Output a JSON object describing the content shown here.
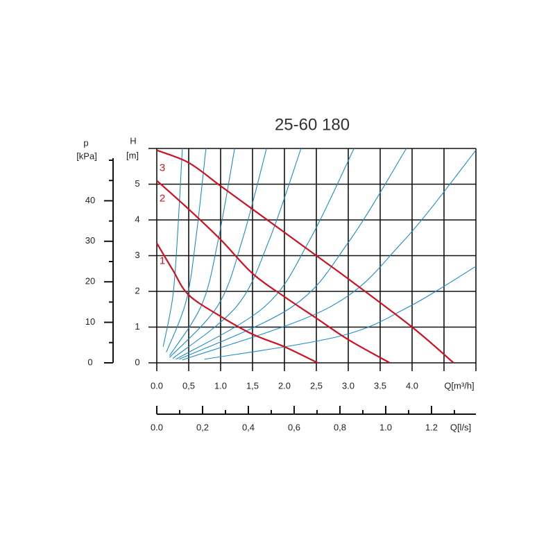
{
  "chart_data": {
    "type": "line",
    "title": "25-60 180",
    "x_label": "Q[m³/h]",
    "xlim": [
      0,
      5
    ],
    "xticks": [
      {
        "value": 0,
        "label": "0.0"
      },
      {
        "value": 0.5,
        "label": "0,5"
      },
      {
        "value": 1,
        "label": "1.0"
      },
      {
        "value": 1.5,
        "label": "1,5"
      },
      {
        "value": 2,
        "label": "2.0"
      },
      {
        "value": 2.5,
        "label": "2,5"
      },
      {
        "value": 3,
        "label": "3.0"
      },
      {
        "value": 3.5,
        "label": "3.5"
      },
      {
        "value": 4,
        "label": "4.0"
      }
    ],
    "xgrid": [
      0,
      0.5,
      1,
      1.5,
      2,
      2.5,
      3,
      3.5,
      4,
      4.5,
      5
    ],
    "y_label": "H",
    "y_unit": "[m]",
    "ylim": [
      0,
      6
    ],
    "yticks": [
      0,
      1,
      2,
      3,
      4,
      5
    ],
    "ygrid": [
      0,
      1,
      2,
      3,
      4,
      5,
      6
    ],
    "p_axis": {
      "label": "p",
      "unit": "[kPa]",
      "lim": [
        0,
        50
      ],
      "ticks": [
        0,
        10,
        20,
        30,
        40
      ],
      "minor_ticks": [
        5,
        15,
        25,
        35,
        45,
        50
      ]
    },
    "ls_axis": {
      "label": "Q[l/s]",
      "lim": [
        0,
        1.394
      ],
      "ticks": [
        {
          "value": 0,
          "label": "0.0"
        },
        {
          "value": 0.2,
          "label": "0,2"
        },
        {
          "value": 0.4,
          "label": "0,4"
        },
        {
          "value": 0.6,
          "label": "0,6"
        },
        {
          "value": 0.8,
          "label": "0,8"
        },
        {
          "value": 1,
          "label": "1.0"
        },
        {
          "value": 1.2,
          "label": "1.2"
        }
      ],
      "minor_ticks": [
        0.1,
        0.3,
        0.5,
        0.7,
        0.9,
        1.1,
        1.3
      ]
    },
    "series": [
      {
        "name": "1",
        "color": "#d0101e",
        "x": [
          0,
          0.25,
          0.5,
          1,
          1.5,
          2,
          2.52
        ],
        "values": [
          3.35,
          2.6,
          1.9,
          1.3,
          0.8,
          0.45,
          0
        ]
      },
      {
        "name": "2",
        "color": "#d0101e",
        "x": [
          0,
          0.5,
          1,
          1.5,
          2,
          2.5,
          3,
          3.65
        ],
        "values": [
          5.1,
          4.3,
          3.45,
          2.5,
          1.85,
          1.25,
          0.65,
          0
        ]
      },
      {
        "name": "3",
        "color": "#d0101e",
        "x": [
          0,
          0.5,
          1,
          1.5,
          2.5,
          3,
          4,
          4.65
        ],
        "values": [
          5.95,
          5.6,
          4.95,
          4.3,
          3,
          2.35,
          1,
          0
        ]
      }
    ],
    "system_curves": {
      "color": "#1a8ccc",
      "curves": [
        {
          "x": [
            0.1,
            0.25,
            0.325,
            0.4
          ],
          "values": [
            0.45,
            1.84,
            3.57,
            6
          ]
        },
        {
          "x": [
            0.15,
            0.46,
            0.615,
            0.77
          ],
          "values": [
            0.3,
            1.73,
            3.51,
            6
          ]
        },
        {
          "x": [
            0.2,
            0.71,
            0.965,
            1.22
          ],
          "values": [
            0.2,
            1.65,
            3.46,
            6
          ]
        },
        {
          "x": [
            0.2,
            0.96,
            1.34,
            1.72
          ],
          "values": [
            0.15,
            1.61,
            3.44,
            6
          ]
        },
        {
          "x": [
            0.25,
            1.255,
            1.76,
            2.26
          ],
          "values": [
            0.12,
            1.59,
            3.43,
            6
          ]
        },
        {
          "x": [
            0.3,
            1.695,
            2.39,
            3.09
          ],
          "values": [
            0.1,
            1.58,
            3.42,
            6
          ]
        },
        {
          "x": [
            0.35,
            2.13,
            3.02,
            3.91
          ],
          "values": [
            0.1,
            1.58,
            3.42,
            6
          ]
        },
        {
          "x": [
            0.4,
            2.7,
            3.85,
            5
          ],
          "values": [
            0.08,
            1.55,
            3.38,
            5.95
          ]
        },
        {
          "x": [
            0.75,
            2.875,
            3.94,
            5
          ],
          "values": [
            0.1,
            0.75,
            1.56,
            2.7
          ]
        }
      ]
    }
  }
}
